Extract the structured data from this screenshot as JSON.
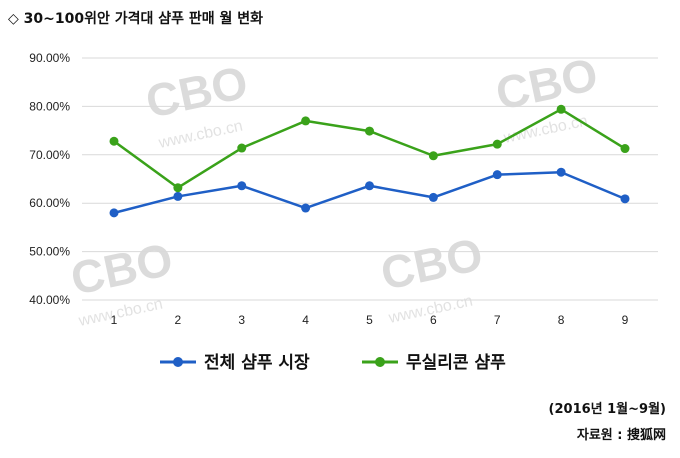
{
  "title": "◇ 30~100위안 가격대 샴푸 판매 월 변화",
  "watermark": "CBO",
  "watermark_url": "www.cbo.cn",
  "period_note": "(2016년 1월~9월)",
  "source_note": "자료원 : 搜狐网",
  "chart_data": {
    "type": "line",
    "x": [
      1,
      2,
      3,
      4,
      5,
      6,
      7,
      8,
      9
    ],
    "x_tick_labels": [
      "1",
      "2",
      "3",
      "4",
      "5",
      "6",
      "7",
      "8",
      "9"
    ],
    "ylim": [
      40,
      90
    ],
    "y_tick_labels": [
      "40.00%",
      "50.00%",
      "60.00%",
      "70.00%",
      "80.00%",
      "90.00%"
    ],
    "y_ticks": [
      40,
      50,
      60,
      70,
      80,
      90
    ],
    "grid": true,
    "legend_position": "bottom",
    "series": [
      {
        "name": "전체 샴푸 시장",
        "color": "#1f5fc6",
        "values": [
          58.0,
          61.4,
          63.6,
          59.0,
          63.6,
          61.2,
          65.9,
          66.4,
          60.9
        ]
      },
      {
        "name": "무실리콘 샴푸",
        "color": "#3aa21a",
        "values": [
          72.8,
          63.2,
          71.4,
          77.0,
          74.9,
          69.8,
          72.2,
          79.4,
          71.3
        ]
      }
    ]
  }
}
